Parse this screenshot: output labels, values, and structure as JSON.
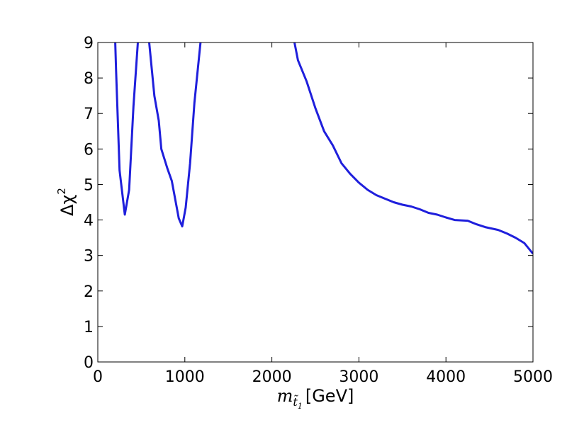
{
  "chart_data": {
    "type": "line",
    "title": "",
    "xlabel": {
      "symbol": "m",
      "subscript": "t̃",
      "subsubscript": "1",
      "unit": "[GeV]"
    },
    "ylabel": {
      "symbol": "Δχ",
      "superscript": "2"
    },
    "xlim": [
      0,
      5000
    ],
    "ylim": [
      0,
      9
    ],
    "xticks": [
      0,
      1000,
      2000,
      3000,
      4000,
      5000
    ],
    "yticks": [
      0,
      1,
      2,
      3,
      4,
      5,
      6,
      7,
      8,
      9
    ],
    "grid": false,
    "legend": "none",
    "line_color": "#1f1fdc",
    "series": [
      {
        "name": "",
        "segments": [
          [
            [
              200,
              9.0
            ],
            [
              210,
              8.2
            ],
            [
              250,
              5.4
            ],
            [
              310,
              4.15
            ],
            [
              360,
              4.85
            ],
            [
              410,
              7.2
            ],
            [
              460,
              9.0
            ]
          ],
          [
            [
              590,
              9.0
            ],
            [
              650,
              7.5
            ],
            [
              700,
              6.8
            ],
            [
              730,
              6.0
            ],
            [
              800,
              5.45
            ],
            [
              850,
              5.1
            ],
            [
              930,
              4.05
            ],
            [
              970,
              3.82
            ],
            [
              1010,
              4.35
            ],
            [
              1060,
              5.6
            ],
            [
              1110,
              7.3
            ],
            [
              1180,
              9.0
            ]
          ],
          [
            [
              2260,
              9.0
            ],
            [
              2300,
              8.5
            ],
            [
              2400,
              7.9
            ],
            [
              2500,
              7.15
            ],
            [
              2600,
              6.5
            ],
            [
              2700,
              6.1
            ],
            [
              2800,
              5.6
            ],
            [
              2900,
              5.3
            ],
            [
              3000,
              5.05
            ],
            [
              3100,
              4.85
            ],
            [
              3200,
              4.7
            ],
            [
              3300,
              4.6
            ],
            [
              3400,
              4.5
            ],
            [
              3500,
              4.43
            ],
            [
              3600,
              4.38
            ],
            [
              3700,
              4.3
            ],
            [
              3800,
              4.2
            ],
            [
              3900,
              4.15
            ],
            [
              4000,
              4.07
            ],
            [
              4100,
              4.0
            ],
            [
              4250,
              3.98
            ],
            [
              4350,
              3.88
            ],
            [
              4450,
              3.8
            ],
            [
              4600,
              3.72
            ],
            [
              4700,
              3.62
            ],
            [
              4800,
              3.5
            ],
            [
              4900,
              3.35
            ],
            [
              5000,
              3.05
            ]
          ]
        ]
      }
    ]
  }
}
